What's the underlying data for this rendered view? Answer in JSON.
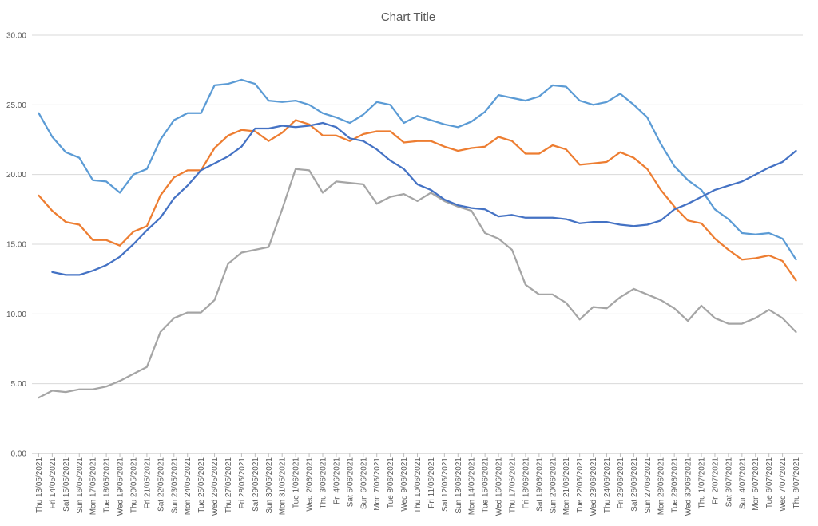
{
  "chart_data": {
    "type": "line",
    "title": "Chart Title",
    "xlabel": "",
    "ylabel": "",
    "ylim": [
      0,
      30
    ],
    "yticks": [
      "0.00",
      "5.00",
      "10.00",
      "15.00",
      "20.00",
      "25.00",
      "30.00"
    ],
    "grid": true,
    "legend": "none",
    "categories": [
      "Thu 13/05/2021",
      "Fri 14/05/2021",
      "Sat 15/05/2021",
      "Sun 16/05/2021",
      "Mon 17/05/2021",
      "Tue 18/05/2021",
      "Wed 19/05/2021",
      "Thu 20/05/2021",
      "Fri 21/05/2021",
      "Sat 22/05/2021",
      "Sun 23/05/2021",
      "Mon 24/05/2021",
      "Tue 25/05/2021",
      "Wed 26/05/2021",
      "Thu 27/05/2021",
      "Fri 28/05/2021",
      "Sat 29/05/2021",
      "Sun 30/05/2021",
      "Mon 31/05/2021",
      "Tue 1/06/2021",
      "Wed 2/06/2021",
      "Thu 3/06/2021",
      "Fri 4/06/2021",
      "Sat 5/06/2021",
      "Sun 6/06/2021",
      "Mon 7/06/2021",
      "Tue 8/06/2021",
      "Wed 9/06/2021",
      "Thu 10/06/2021",
      "Fri 11/06/2021",
      "Sat 12/06/2021",
      "Sun 13/06/2021",
      "Mon 14/06/2021",
      "Tue 15/06/2021",
      "Wed 16/06/2021",
      "Thu 17/06/2021",
      "Fri 18/06/2021",
      "Sat 19/06/2021",
      "Sun 20/06/2021",
      "Mon 21/06/2021",
      "Tue 22/06/2021",
      "Wed 23/06/2021",
      "Thu 24/06/2021",
      "Fri 25/06/2021",
      "Sat 26/06/2021",
      "Sun 27/06/2021",
      "Mon 28/06/2021",
      "Tue 29/06/2021",
      "Wed 30/06/2021",
      "Thu 1/07/2021",
      "Fri 2/07/2021",
      "Sat 3/07/2021",
      "Sun 4/07/2021",
      "Mon 5/07/2021",
      "Tue 6/07/2021",
      "Wed 7/07/2021",
      "Thu 8/07/2021"
    ],
    "x_tick_interval": 2,
    "series": [
      {
        "color": "#5b9bd5",
        "values": [
          24.4,
          22.7,
          21.6,
          21.2,
          19.6,
          19.5,
          18.7,
          20.0,
          20.4,
          22.5,
          23.9,
          24.4,
          24.4,
          26.4,
          26.5,
          26.8,
          26.5,
          25.3,
          25.2,
          25.3,
          25.0,
          24.4,
          24.1,
          23.7,
          24.3,
          25.2,
          25.0,
          23.7,
          24.2,
          23.9,
          23.6,
          23.4,
          23.8,
          24.5,
          25.7,
          25.5,
          25.3,
          25.6,
          26.4,
          26.3,
          25.3,
          25.0,
          25.2,
          25.8,
          25.0,
          24.1,
          22.2,
          20.6,
          19.6,
          18.9,
          17.5,
          16.8,
          15.8,
          15.7,
          15.8,
          15.4,
          13.9
        ]
      },
      {
        "color": "#ed7d31",
        "values": [
          18.5,
          17.4,
          16.6,
          16.4,
          15.3,
          15.3,
          14.9,
          15.9,
          16.3,
          18.5,
          19.8,
          20.3,
          20.3,
          21.9,
          22.8,
          23.2,
          23.1,
          22.4,
          23.0,
          23.9,
          23.6,
          22.8,
          22.8,
          22.4,
          22.9,
          23.1,
          23.1,
          22.3,
          22.4,
          22.4,
          22.0,
          21.7,
          21.9,
          22.0,
          22.7,
          22.4,
          21.5,
          21.5,
          22.1,
          21.8,
          20.7,
          20.8,
          20.9,
          21.6,
          21.2,
          20.4,
          18.9,
          17.7,
          16.7,
          16.5,
          15.4,
          14.6,
          13.9,
          14.0,
          14.2,
          13.8,
          12.4
        ]
      },
      {
        "color": "#a5a5a5",
        "values": [
          4.0,
          4.5,
          4.4,
          4.6,
          4.6,
          4.8,
          5.2,
          5.7,
          6.2,
          8.7,
          9.7,
          10.1,
          10.1,
          11.0,
          13.6,
          14.4,
          14.6,
          14.8,
          17.5,
          20.4,
          20.3,
          18.7,
          19.5,
          19.4,
          19.3,
          17.9,
          18.4,
          18.6,
          18.1,
          18.7,
          18.1,
          17.7,
          17.4,
          15.8,
          15.4,
          14.6,
          12.1,
          11.4,
          11.4,
          10.8,
          9.6,
          10.5,
          10.4,
          11.2,
          11.8,
          11.4,
          11.0,
          10.4,
          9.5,
          10.6,
          9.7,
          9.3,
          9.3,
          9.7,
          10.3,
          9.7,
          8.7
        ]
      },
      {
        "color": "#4472c4",
        "values": [
          null,
          13.0,
          12.8,
          12.8,
          13.1,
          13.5,
          14.1,
          15.0,
          16.0,
          16.9,
          18.3,
          19.2,
          20.3,
          20.8,
          21.3,
          22.0,
          23.3,
          23.3,
          23.5,
          23.4,
          23.5,
          23.7,
          23.4,
          22.6,
          22.4,
          21.8,
          21.0,
          20.4,
          19.3,
          18.9,
          18.2,
          17.8,
          17.6,
          17.5,
          17.0,
          17.1,
          16.9,
          16.9,
          16.9,
          16.8,
          16.5,
          16.6,
          16.6,
          16.4,
          16.3,
          16.4,
          16.7,
          17.5,
          17.9,
          18.4,
          18.9,
          19.2,
          19.5,
          20.0,
          20.5,
          20.9,
          21.7
        ]
      }
    ]
  }
}
